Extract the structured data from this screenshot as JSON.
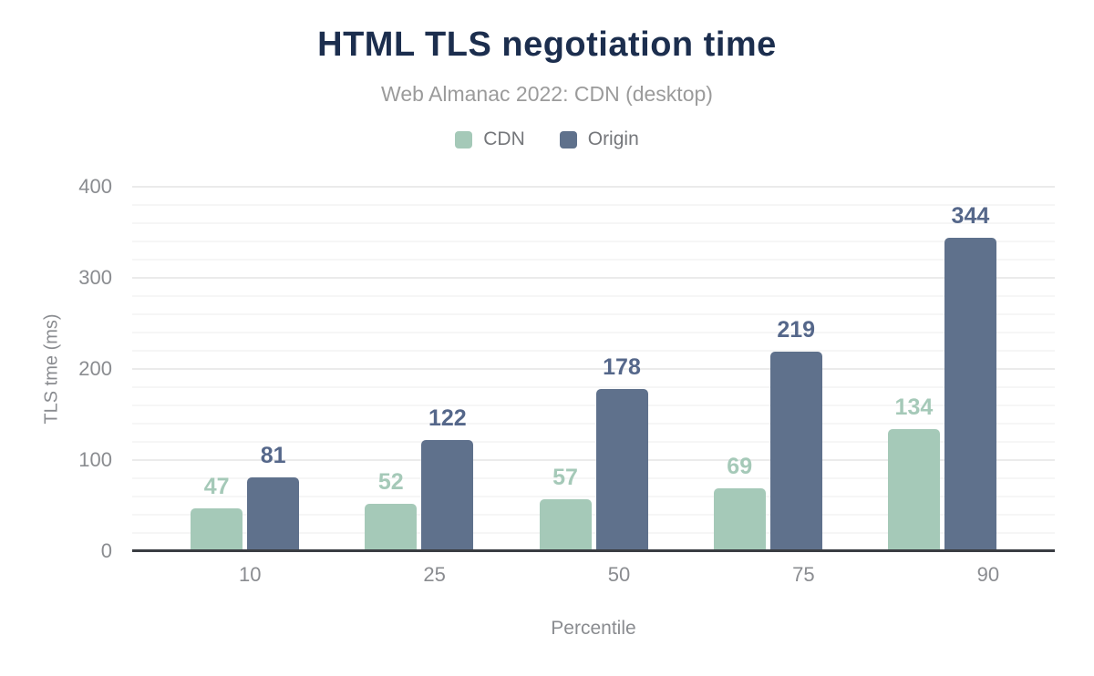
{
  "title": "HTML TLS negotiation time",
  "subtitle": "Web Almanac 2022: CDN (desktop)",
  "colors": {
    "title": "#1c2e4e",
    "subtitle": "#9b9b9b",
    "axis_text": "#8a8c90",
    "baseline": "#3a3d42",
    "gridline_minor": "#f6f6f6",
    "gridline_major": "#ebebeb",
    "cdn": "#a5c9b8",
    "origin": "#5f718c",
    "origin_label": "#55678a"
  },
  "chart_data": {
    "type": "bar",
    "title": "HTML TLS negotiation time",
    "subtitle": "Web Almanac 2022: CDN (desktop)",
    "categories": [
      "10",
      "25",
      "50",
      "75",
      "90"
    ],
    "series": [
      {
        "name": "CDN",
        "color": "#a5c9b8",
        "label_color": "#a5c9b8",
        "values": [
          47,
          52,
          57,
          69,
          134
        ]
      },
      {
        "name": "Origin",
        "color": "#5f718c",
        "label_color": "#55678a",
        "values": [
          81,
          122,
          178,
          219,
          344
        ]
      }
    ],
    "xlabel": "Percentile",
    "ylabel": "TLS tme (ms)",
    "ylim": [
      0,
      400
    ],
    "yticks": [
      0,
      100,
      200,
      300,
      400
    ],
    "grid": {
      "minor_step": 20,
      "major_step": 100
    },
    "legend_position": "top",
    "data_labels": true
  }
}
